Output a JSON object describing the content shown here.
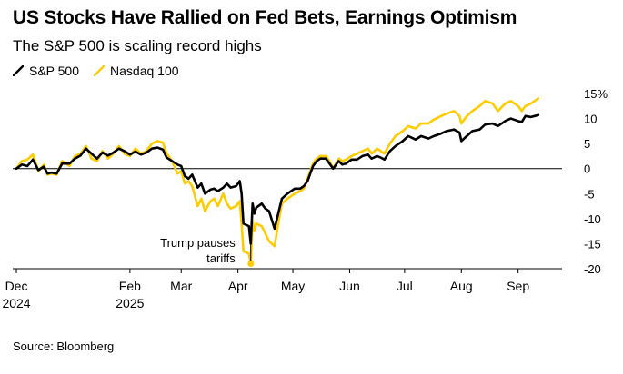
{
  "header": {
    "title": "US Stocks Have Rallied on Fed Bets, Earnings Optimism",
    "subtitle": "The S&P 500 is scaling record highs"
  },
  "footer": {
    "source": "Source: Bloomberg"
  },
  "chart_data": {
    "type": "line",
    "xlim": [
      "2024-11-29",
      "2025-09-25"
    ],
    "ylim": [
      -20,
      15
    ],
    "ytick_values": [
      -20,
      -15,
      -10,
      -5,
      0,
      5,
      10,
      15
    ],
    "ytick_labels": [
      "-20",
      "-15",
      "-10",
      "-5",
      "0",
      "5",
      "10",
      "15%"
    ],
    "y_axis_side": "right",
    "xticks": [
      {
        "date": "2024-12-01",
        "label": "Dec",
        "year": "2024"
      },
      {
        "date": "2025-02-01",
        "label": "Feb",
        "year": "2025"
      },
      {
        "date": "2025-03-01",
        "label": "Mar",
        "year": ""
      },
      {
        "date": "2025-04-01",
        "label": "Apr",
        "year": ""
      },
      {
        "date": "2025-05-01",
        "label": "May",
        "year": ""
      },
      {
        "date": "2025-06-01",
        "label": "Jun",
        "year": ""
      },
      {
        "date": "2025-07-01",
        "label": "Jul",
        "year": ""
      },
      {
        "date": "2025-08-01",
        "label": "Aug",
        "year": ""
      },
      {
        "date": "2025-09-01",
        "label": "Sep",
        "year": ""
      }
    ],
    "grid": false,
    "zero_line": true,
    "legend_position": "top-left",
    "annotation": {
      "lines": [
        "Trump pauses",
        "tariffs"
      ],
      "date": "2025-04-08",
      "value": -19
    },
    "series": [
      {
        "name": "S&P 500",
        "color": "#000000",
        "points": [
          [
            "2024-12-01",
            0.0
          ],
          [
            "2024-12-04",
            0.8
          ],
          [
            "2024-12-07",
            0.5
          ],
          [
            "2024-12-10",
            1.8
          ],
          [
            "2024-12-13",
            -0.3
          ],
          [
            "2024-12-16",
            0.4
          ],
          [
            "2024-12-18",
            -1.0
          ],
          [
            "2024-12-20",
            -0.8
          ],
          [
            "2024-12-23",
            -1.0
          ],
          [
            "2024-12-26",
            1.0
          ],
          [
            "2024-12-30",
            1.0
          ],
          [
            "2025-01-02",
            2.0
          ],
          [
            "2025-01-05",
            2.6
          ],
          [
            "2025-01-08",
            4.0
          ],
          [
            "2025-01-11",
            3.0
          ],
          [
            "2025-01-14",
            2.0
          ],
          [
            "2025-01-17",
            3.2
          ],
          [
            "2025-01-20",
            2.6
          ],
          [
            "2025-01-23",
            3.2
          ],
          [
            "2025-01-26",
            4.0
          ],
          [
            "2025-01-29",
            3.5
          ],
          [
            "2025-02-01",
            2.8
          ],
          [
            "2025-02-04",
            3.4
          ],
          [
            "2025-02-07",
            2.8
          ],
          [
            "2025-02-10",
            3.2
          ],
          [
            "2025-02-13",
            4.0
          ],
          [
            "2025-02-16",
            4.2
          ],
          [
            "2025-02-19",
            3.8
          ],
          [
            "2025-02-21",
            2.2
          ],
          [
            "2025-02-24",
            1.5
          ],
          [
            "2025-02-27",
            0.8
          ],
          [
            "2025-03-01",
            0.5
          ],
          [
            "2025-03-03",
            -1.5
          ],
          [
            "2025-03-05",
            -2.0
          ],
          [
            "2025-03-07",
            -1.2
          ],
          [
            "2025-03-10",
            -3.8
          ],
          [
            "2025-03-12",
            -3.0
          ],
          [
            "2025-03-14",
            -5.0
          ],
          [
            "2025-03-17",
            -4.2
          ],
          [
            "2025-03-19",
            -4.0
          ],
          [
            "2025-03-21",
            -4.5
          ],
          [
            "2025-03-24",
            -3.8
          ],
          [
            "2025-03-26",
            -3.0
          ],
          [
            "2025-03-28",
            -3.8
          ],
          [
            "2025-03-31",
            -3.5
          ],
          [
            "2025-04-02",
            -2.5
          ],
          [
            "2025-04-03",
            -5.0
          ],
          [
            "2025-04-04",
            -11.0
          ],
          [
            "2025-04-07",
            -11.5
          ],
          [
            "2025-04-08",
            -15.0
          ],
          [
            "2025-04-09",
            -7.0
          ],
          [
            "2025-04-10",
            -9.0
          ],
          [
            "2025-04-11",
            -7.8
          ],
          [
            "2025-04-14",
            -7.0
          ],
          [
            "2025-04-16",
            -8.0
          ],
          [
            "2025-04-18",
            -8.5
          ],
          [
            "2025-04-21",
            -12.0
          ],
          [
            "2025-04-23",
            -9.0
          ],
          [
            "2025-04-25",
            -6.0
          ],
          [
            "2025-04-28",
            -5.0
          ],
          [
            "2025-04-30",
            -4.5
          ],
          [
            "2025-05-02",
            -4.0
          ],
          [
            "2025-05-05",
            -4.0
          ],
          [
            "2025-05-07",
            -3.5
          ],
          [
            "2025-05-09",
            -2.5
          ],
          [
            "2025-05-12",
            0.5
          ],
          [
            "2025-05-14",
            1.5
          ],
          [
            "2025-05-16",
            2.0
          ],
          [
            "2025-05-19",
            2.0
          ],
          [
            "2025-05-21",
            1.0
          ],
          [
            "2025-05-23",
            0.0
          ],
          [
            "2025-05-26",
            1.5
          ],
          [
            "2025-05-28",
            0.8
          ],
          [
            "2025-05-30",
            1.0
          ],
          [
            "2025-06-02",
            1.8
          ],
          [
            "2025-06-05",
            1.8
          ],
          [
            "2025-06-08",
            2.5
          ],
          [
            "2025-06-11",
            2.8
          ],
          [
            "2025-06-13",
            2.0
          ],
          [
            "2025-06-16",
            2.5
          ],
          [
            "2025-06-18",
            2.2
          ],
          [
            "2025-06-20",
            1.8
          ],
          [
            "2025-06-23",
            3.5
          ],
          [
            "2025-06-26",
            4.5
          ],
          [
            "2025-06-30",
            5.5
          ],
          [
            "2025-07-03",
            6.5
          ],
          [
            "2025-07-07",
            5.8
          ],
          [
            "2025-07-10",
            6.5
          ],
          [
            "2025-07-14",
            6.0
          ],
          [
            "2025-07-17",
            6.5
          ],
          [
            "2025-07-21",
            7.0
          ],
          [
            "2025-07-24",
            7.5
          ],
          [
            "2025-07-28",
            7.8
          ],
          [
            "2025-07-31",
            7.2
          ],
          [
            "2025-08-01",
            5.5
          ],
          [
            "2025-08-04",
            6.5
          ],
          [
            "2025-08-07",
            7.5
          ],
          [
            "2025-08-11",
            7.8
          ],
          [
            "2025-08-14",
            8.8
          ],
          [
            "2025-08-18",
            9.0
          ],
          [
            "2025-08-21",
            8.5
          ],
          [
            "2025-08-25",
            9.5
          ],
          [
            "2025-08-28",
            10.0
          ],
          [
            "2025-09-01",
            9.5
          ],
          [
            "2025-09-03",
            9.3
          ],
          [
            "2025-09-05",
            10.5
          ],
          [
            "2025-09-08",
            10.3
          ],
          [
            "2025-09-10",
            10.5
          ],
          [
            "2025-09-12",
            10.7
          ]
        ]
      },
      {
        "name": "Nasdaq 100",
        "color": "#ffcc00",
        "points": [
          [
            "2024-12-01",
            0.0
          ],
          [
            "2024-12-04",
            1.5
          ],
          [
            "2024-12-07",
            1.8
          ],
          [
            "2024-12-10",
            2.8
          ],
          [
            "2024-12-13",
            -0.5
          ],
          [
            "2024-12-16",
            0.8
          ],
          [
            "2024-12-18",
            -1.2
          ],
          [
            "2024-12-20",
            -1.0
          ],
          [
            "2024-12-23",
            -1.2
          ],
          [
            "2024-12-26",
            1.5
          ],
          [
            "2024-12-30",
            0.5
          ],
          [
            "2025-01-02",
            2.5
          ],
          [
            "2025-01-05",
            3.0
          ],
          [
            "2025-01-08",
            4.5
          ],
          [
            "2025-01-11",
            2.0
          ],
          [
            "2025-01-14",
            1.5
          ],
          [
            "2025-01-17",
            3.5
          ],
          [
            "2025-01-20",
            2.0
          ],
          [
            "2025-01-23",
            3.0
          ],
          [
            "2025-01-26",
            4.5
          ],
          [
            "2025-01-29",
            3.0
          ],
          [
            "2025-02-01",
            2.5
          ],
          [
            "2025-02-04",
            4.0
          ],
          [
            "2025-02-07",
            3.0
          ],
          [
            "2025-02-10",
            3.5
          ],
          [
            "2025-02-13",
            5.0
          ],
          [
            "2025-02-16",
            5.5
          ],
          [
            "2025-02-19",
            5.2
          ],
          [
            "2025-02-21",
            3.0
          ],
          [
            "2025-02-24",
            1.5
          ],
          [
            "2025-02-27",
            -1.0
          ],
          [
            "2025-03-01",
            -0.5
          ],
          [
            "2025-03-03",
            -3.0
          ],
          [
            "2025-03-05",
            -2.5
          ],
          [
            "2025-03-07",
            -3.5
          ],
          [
            "2025-03-10",
            -7.5
          ],
          [
            "2025-03-12",
            -6.0
          ],
          [
            "2025-03-14",
            -8.5
          ],
          [
            "2025-03-17",
            -6.5
          ],
          [
            "2025-03-19",
            -6.0
          ],
          [
            "2025-03-21",
            -7.5
          ],
          [
            "2025-03-24",
            -5.0
          ],
          [
            "2025-03-26",
            -7.0
          ],
          [
            "2025-03-28",
            -8.0
          ],
          [
            "2025-03-31",
            -7.5
          ],
          [
            "2025-04-02",
            -6.5
          ],
          [
            "2025-04-03",
            -11.0
          ],
          [
            "2025-04-04",
            -16.5
          ],
          [
            "2025-04-07",
            -17.0
          ],
          [
            "2025-04-08",
            -19.0
          ],
          [
            "2025-04-09",
            -10.5
          ],
          [
            "2025-04-10",
            -12.5
          ],
          [
            "2025-04-11",
            -11.0
          ],
          [
            "2025-04-14",
            -11.5
          ],
          [
            "2025-04-16",
            -13.0
          ],
          [
            "2025-04-18",
            -14.5
          ],
          [
            "2025-04-21",
            -15.5
          ],
          [
            "2025-04-23",
            -11.0
          ],
          [
            "2025-04-25",
            -7.0
          ],
          [
            "2025-04-28",
            -6.0
          ],
          [
            "2025-04-30",
            -5.5
          ],
          [
            "2025-05-02",
            -5.0
          ],
          [
            "2025-05-05",
            -4.5
          ],
          [
            "2025-05-07",
            -4.0
          ],
          [
            "2025-05-09",
            -2.0
          ],
          [
            "2025-05-12",
            1.0
          ],
          [
            "2025-05-14",
            2.0
          ],
          [
            "2025-05-16",
            2.5
          ],
          [
            "2025-05-19",
            2.5
          ],
          [
            "2025-05-21",
            1.5
          ],
          [
            "2025-05-23",
            0.0
          ],
          [
            "2025-05-26",
            2.0
          ],
          [
            "2025-05-28",
            1.5
          ],
          [
            "2025-05-30",
            1.8
          ],
          [
            "2025-06-02",
            2.5
          ],
          [
            "2025-06-05",
            3.0
          ],
          [
            "2025-06-08",
            3.5
          ],
          [
            "2025-06-11",
            4.0
          ],
          [
            "2025-06-13",
            3.0
          ],
          [
            "2025-06-16",
            4.0
          ],
          [
            "2025-06-18",
            3.5
          ],
          [
            "2025-06-20",
            3.0
          ],
          [
            "2025-06-23",
            5.0
          ],
          [
            "2025-06-26",
            6.5
          ],
          [
            "2025-06-30",
            7.5
          ],
          [
            "2025-07-03",
            8.5
          ],
          [
            "2025-07-07",
            8.0
          ],
          [
            "2025-07-10",
            9.0
          ],
          [
            "2025-07-14",
            9.0
          ],
          [
            "2025-07-17",
            9.8
          ],
          [
            "2025-07-21",
            10.5
          ],
          [
            "2025-07-24",
            11.0
          ],
          [
            "2025-07-28",
            11.5
          ],
          [
            "2025-07-31",
            10.5
          ],
          [
            "2025-08-01",
            9.0
          ],
          [
            "2025-08-04",
            10.5
          ],
          [
            "2025-08-07",
            11.5
          ],
          [
            "2025-08-11",
            12.5
          ],
          [
            "2025-08-14",
            13.5
          ],
          [
            "2025-08-18",
            13.0
          ],
          [
            "2025-08-21",
            11.5
          ],
          [
            "2025-08-25",
            13.0
          ],
          [
            "2025-08-28",
            13.5
          ],
          [
            "2025-09-01",
            12.5
          ],
          [
            "2025-09-03",
            11.5
          ],
          [
            "2025-09-05",
            12.5
          ],
          [
            "2025-09-08",
            13.0
          ],
          [
            "2025-09-10",
            13.5
          ],
          [
            "2025-09-12",
            14.0
          ]
        ]
      }
    ]
  }
}
